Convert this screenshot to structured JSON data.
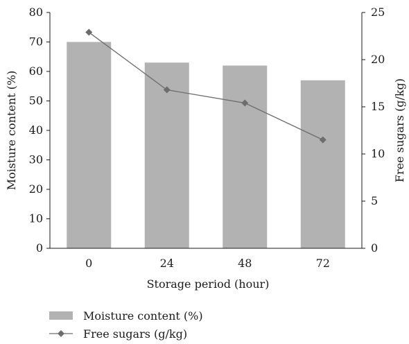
{
  "chart_data": {
    "type": "bar",
    "categories": [
      "0",
      "24",
      "48",
      "72"
    ],
    "xlabel": "Storage period (hour)",
    "ylabel": "Moisture content (%)",
    "y2label": "Free sugars (g/kg)",
    "ylim": [
      0,
      80
    ],
    "y2lim": [
      0,
      25
    ],
    "yticks": [
      "0",
      "10",
      "20",
      "30",
      "40",
      "50",
      "60",
      "70",
      "80"
    ],
    "y2ticks": [
      "0",
      "5",
      "10",
      "15",
      "20",
      "25"
    ],
    "series": [
      {
        "name": "Moisture content (%)",
        "type": "bar",
        "axis": "left",
        "values": [
          70,
          63,
          62,
          57
        ],
        "color": "#b2b2b2"
      },
      {
        "name": "Free sugars (g/kg)",
        "type": "line",
        "axis": "right",
        "marker": "diamond",
        "values": [
          22.9,
          16.8,
          15.4,
          11.5
        ],
        "color": "#6d6d6d"
      }
    ],
    "grid": false,
    "legend_position": "bottom-left"
  }
}
